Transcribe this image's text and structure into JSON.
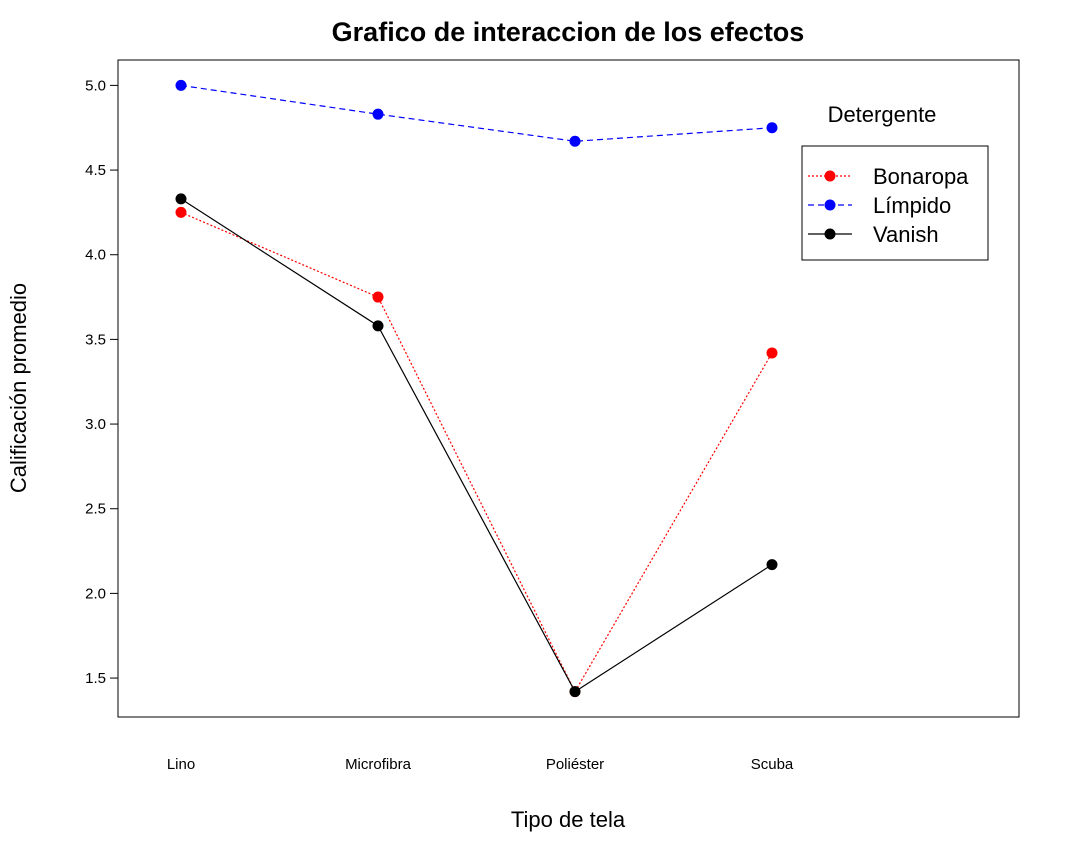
{
  "chart_data": {
    "type": "line",
    "title": "Grafico de interaccion de los efectos",
    "xlabel": "Tipo de tela",
    "ylabel": "Calificación promedio",
    "categories": [
      "Lino",
      "Microfibra",
      "Poliéster",
      "Scuba"
    ],
    "ylim": [
      1.27,
      5.15
    ],
    "yticks": [
      1.5,
      2.0,
      2.5,
      3.0,
      3.5,
      4.0,
      4.5,
      5.0
    ],
    "ytick_labels": [
      "1.5",
      "2.0",
      "2.5",
      "3.0",
      "3.5",
      "4.0",
      "4.5",
      "5.0"
    ],
    "legend_title": "Detergente",
    "legend_position": "top-right",
    "grid": false,
    "series": [
      {
        "name": "Bonaropa",
        "values": [
          4.25,
          3.75,
          1.42,
          3.42
        ],
        "color": "#ff0000",
        "line_style": "dotted"
      },
      {
        "name": "Límpido",
        "values": [
          5.0,
          4.83,
          4.67,
          4.75
        ],
        "color": "#0000ff",
        "line_style": "dashed"
      },
      {
        "name": "Vanish",
        "values": [
          4.33,
          3.58,
          1.42,
          2.17
        ],
        "color": "#000000",
        "line_style": "solid"
      }
    ]
  }
}
